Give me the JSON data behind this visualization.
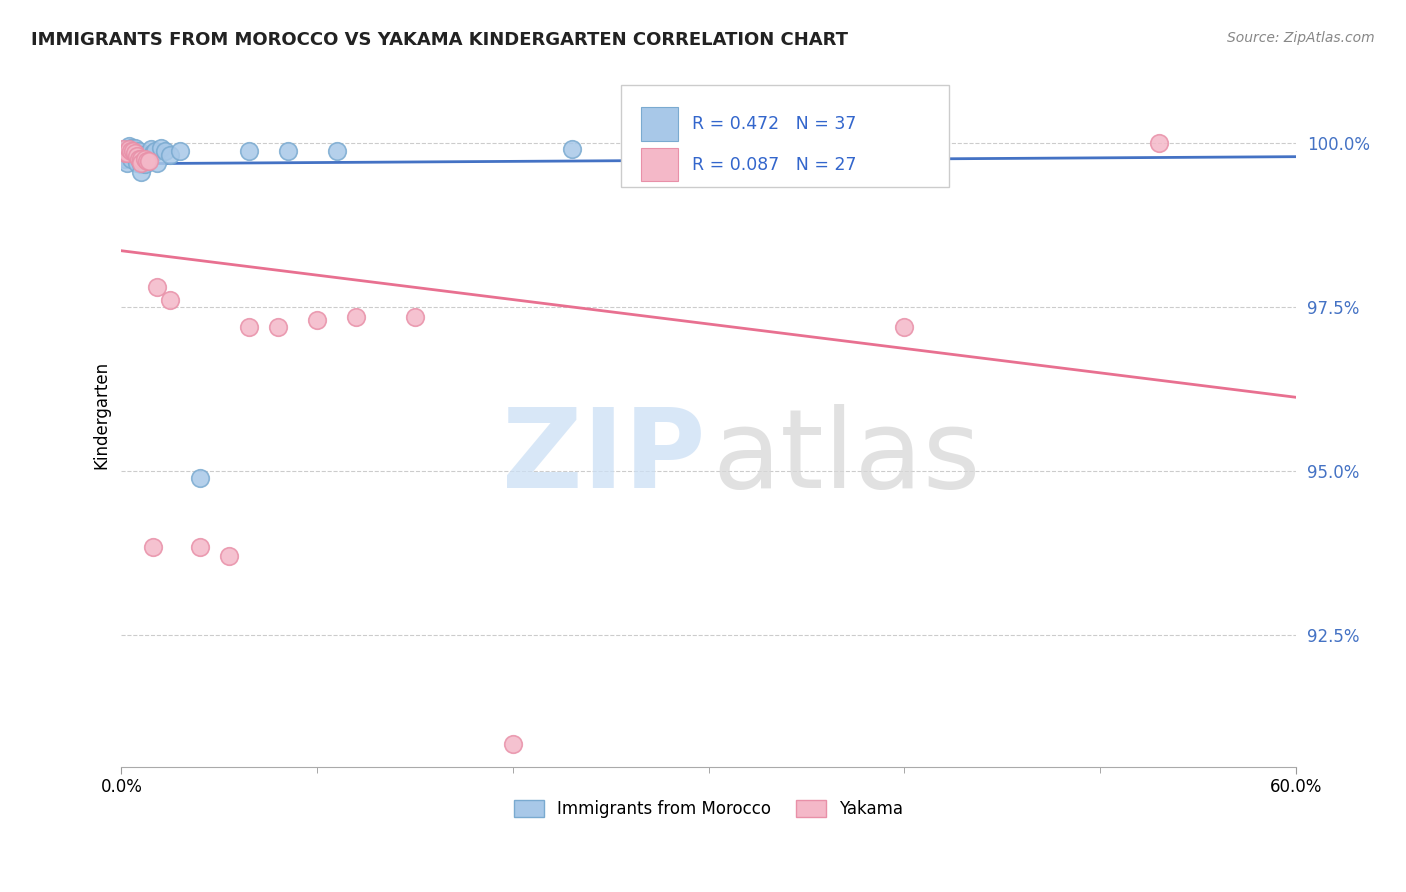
{
  "title": "IMMIGRANTS FROM MOROCCO VS YAKAMA KINDERGARTEN CORRELATION CHART",
  "source": "Source: ZipAtlas.com",
  "ylabel": "Kindergarten",
  "legend_r1": "R = 0.472",
  "legend_n1": "N = 37",
  "legend_r2": "R = 0.087",
  "legend_n2": "N = 27",
  "legend_label1": "Immigrants from Morocco",
  "legend_label2": "Yakama",
  "blue_color": "#a8c8e8",
  "pink_color": "#f4b8c8",
  "blue_edge_color": "#7aaad0",
  "pink_edge_color": "#e890a8",
  "blue_line_color": "#4472c4",
  "pink_line_color": "#e87090",
  "blue_x": [
    0.001,
    0.002,
    0.002,
    0.003,
    0.003,
    0.004,
    0.004,
    0.005,
    0.005,
    0.006,
    0.007,
    0.007,
    0.008,
    0.008,
    0.009,
    0.009,
    0.01,
    0.01,
    0.01,
    0.011,
    0.012,
    0.013,
    0.014,
    0.015,
    0.016,
    0.017,
    0.018,
    0.02,
    0.022,
    0.025,
    0.03,
    0.04,
    0.065,
    0.085,
    0.11,
    0.23,
    0.35
  ],
  "blue_y": [
    0.998,
    0.999,
    0.9975,
    0.9985,
    0.997,
    0.9995,
    0.9988,
    0.9992,
    0.9975,
    0.9988,
    0.9992,
    0.9978,
    0.9985,
    0.997,
    0.9988,
    0.9975,
    0.9982,
    0.9968,
    0.9955,
    0.9972,
    0.9968,
    0.998,
    0.9975,
    0.999,
    0.9985,
    0.9988,
    0.997,
    0.9992,
    0.9988,
    0.9982,
    0.9988,
    0.949,
    0.9988,
    0.9988,
    0.9988,
    0.999,
    0.9992
  ],
  "pink_x": [
    0.001,
    0.002,
    0.003,
    0.004,
    0.005,
    0.006,
    0.007,
    0.008,
    0.009,
    0.01,
    0.01,
    0.012,
    0.013,
    0.014,
    0.016,
    0.018,
    0.025,
    0.04,
    0.055,
    0.065,
    0.08,
    0.1,
    0.12,
    0.15,
    0.2,
    0.4,
    0.53
  ],
  "pink_y": [
    0.999,
    0.9985,
    0.9985,
    0.999,
    0.9988,
    0.9988,
    0.9985,
    0.998,
    0.9975,
    0.9975,
    0.997,
    0.9975,
    0.9972,
    0.9972,
    0.9385,
    0.978,
    0.976,
    0.9385,
    0.937,
    0.972,
    0.972,
    0.973,
    0.9735,
    0.9735,
    0.9085,
    0.972,
    1.0
  ],
  "xmin": 0.0,
  "xmax": 0.6,
  "ymin": 0.905,
  "ymax": 1.012,
  "yticks": [
    0.925,
    0.95,
    0.975,
    1.0
  ],
  "ytick_strs": [
    "92.5%",
    "95.0%",
    "97.5%",
    "100.0%"
  ]
}
